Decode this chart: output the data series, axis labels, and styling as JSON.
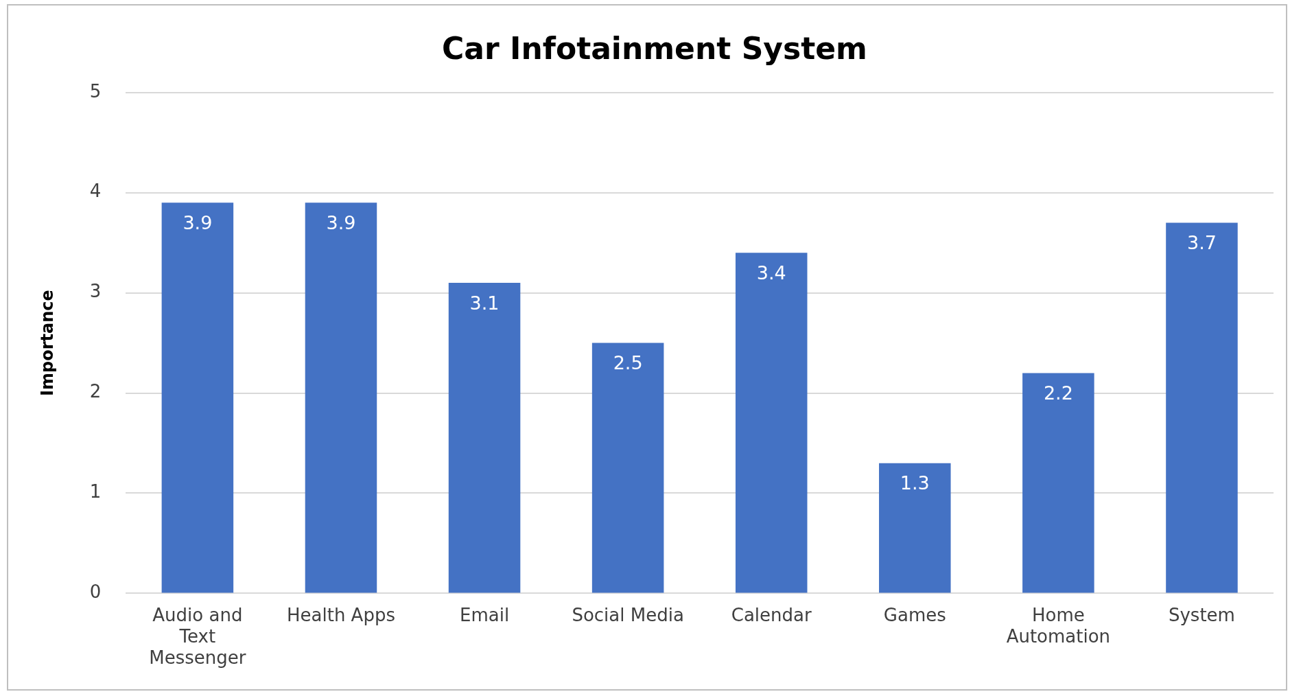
{
  "chart_data": {
    "type": "bar",
    "title": "Car Infotainment System",
    "ylabel": "Importance",
    "categories": [
      "Audio and Text Messenger",
      "Health Apps",
      "Email",
      "Social Media",
      "Calendar",
      "Games",
      "Home Automation",
      "System"
    ],
    "values": [
      3.9,
      3.9,
      3.1,
      2.5,
      3.4,
      1.3,
      2.2,
      3.7
    ],
    "color": "#4472c4",
    "ylim": [
      0,
      5
    ],
    "yticks": [
      0,
      1,
      2,
      3,
      4,
      5
    ],
    "grid": "y",
    "data_labels": true
  }
}
